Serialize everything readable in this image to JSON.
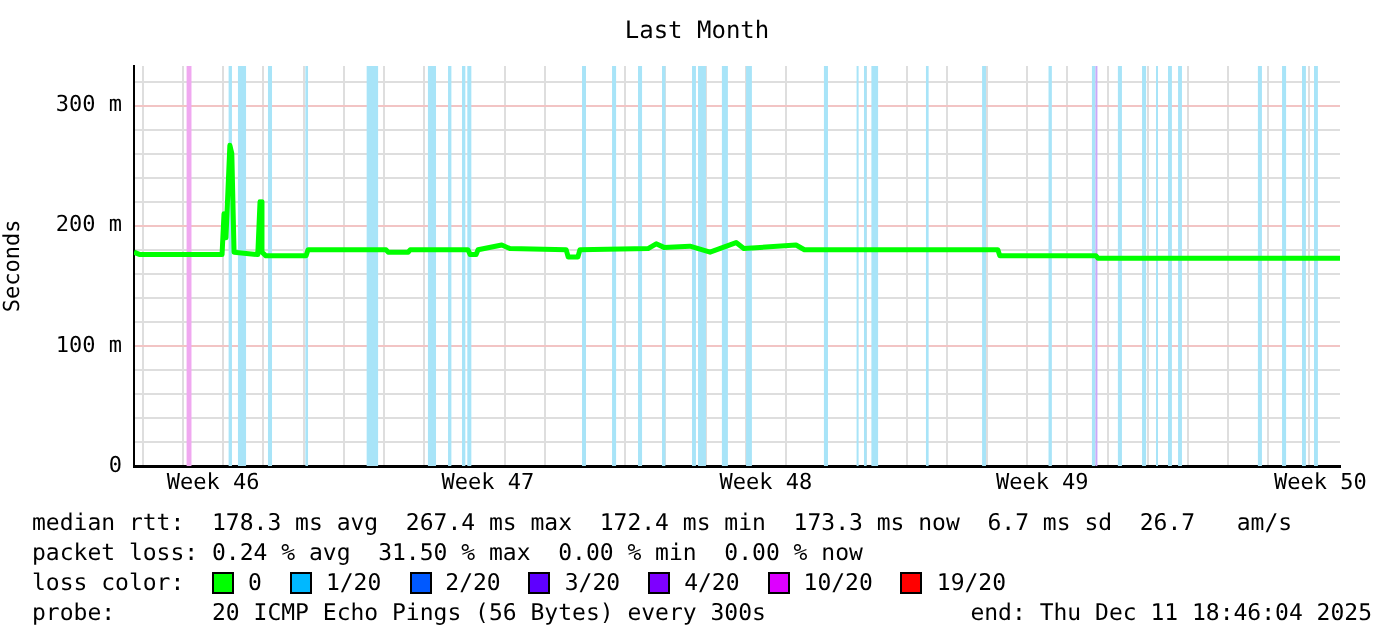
{
  "chart_data": {
    "type": "line",
    "title": "Last Month",
    "ylabel": "Seconds",
    "legend_title": "loss color:",
    "legend": "bottom",
    "grid": true,
    "xlim": [
      "2025-11-11T18:46",
      "2025-12-11T18:46"
    ],
    "xticks": [
      {
        "value": "2025-11-12T00:00",
        "label": null
      },
      {
        "value": "2025-11-13T00:00",
        "label": null
      },
      {
        "value": "2025-11-13T18:00",
        "label": "Week 46"
      },
      {
        "value": "2025-11-14T00:00",
        "label": null
      },
      {
        "value": "2025-11-15T00:00",
        "label": null
      },
      {
        "value": "2025-11-16T00:00",
        "label": null
      },
      {
        "value": "2025-11-17T00:00",
        "label": null
      },
      {
        "value": "2025-11-18T00:00",
        "label": null
      },
      {
        "value": "2025-11-19T00:00",
        "label": null
      },
      {
        "value": "2025-11-20T00:00",
        "label": null
      },
      {
        "value": "2025-11-20T14:00",
        "label": "Week 47"
      },
      {
        "value": "2025-11-21T00:00",
        "label": null
      },
      {
        "value": "2025-11-22T00:00",
        "label": null
      },
      {
        "value": "2025-11-23T00:00",
        "label": null
      },
      {
        "value": "2025-11-24T00:00",
        "label": null
      },
      {
        "value": "2025-11-25T00:00",
        "label": null
      },
      {
        "value": "2025-11-26T00:00",
        "label": null
      },
      {
        "value": "2025-11-27T00:00",
        "label": null
      },
      {
        "value": "2025-11-27T12:00",
        "label": "Week 48"
      },
      {
        "value": "2025-11-28T00:00",
        "label": null
      },
      {
        "value": "2025-11-29T00:00",
        "label": null
      },
      {
        "value": "2025-11-30T00:00",
        "label": null
      },
      {
        "value": "2025-12-01T00:00",
        "label": null
      },
      {
        "value": "2025-12-02T00:00",
        "label": null
      },
      {
        "value": "2025-12-03T00:00",
        "label": null
      },
      {
        "value": "2025-12-04T00:00",
        "label": null
      },
      {
        "value": "2025-12-04T09:00",
        "label": "Week 49"
      },
      {
        "value": "2025-12-05T00:00",
        "label": null
      },
      {
        "value": "2025-12-06T00:00",
        "label": null
      },
      {
        "value": "2025-12-07T00:00",
        "label": null
      },
      {
        "value": "2025-12-08T00:00",
        "label": null
      },
      {
        "value": "2025-12-09T00:00",
        "label": null
      },
      {
        "value": "2025-12-10T00:00",
        "label": null
      },
      {
        "value": "2025-12-11T00:00",
        "label": null
      },
      {
        "value": "2025-12-11T07:00",
        "label": "Week 50"
      }
    ],
    "ylim": [
      0,
      333
    ],
    "yticks": [
      0,
      {
        "value": 20,
        "label": null
      },
      {
        "value": 40,
        "label": null
      },
      {
        "value": 60,
        "label": null
      },
      {
        "value": 80,
        "label": null
      },
      {
        "value": 100,
        "label": "100 m"
      },
      {
        "value": 120,
        "label": null
      },
      {
        "value": 140,
        "label": null
      },
      {
        "value": 160,
        "label": null
      },
      {
        "value": 180,
        "label": null
      },
      {
        "value": 200,
        "label": "200 m"
      },
      {
        "value": 220,
        "label": null
      },
      {
        "value": 240,
        "label": null
      },
      {
        "value": 260,
        "label": null
      },
      {
        "value": 280,
        "label": null
      },
      {
        "value": 300,
        "label": "300 m"
      },
      {
        "value": 320,
        "label": null
      }
    ],
    "series": [
      {
        "name": "0",
        "color": "#00ff00",
        "x": [
          "2025-11-11T18:46",
          "2025-11-11T22:20",
          "2025-11-13T23:20",
          "2025-11-14T00:30",
          "2025-11-14T01:40",
          "2025-11-14T04:00",
          "2025-11-14T05:10",
          "2025-11-14T06:30",
          "2025-11-14T20:40",
          "2025-11-14T22:00",
          "2025-11-14T23:10",
          "2025-11-15T01:30",
          "2025-11-16T01:30",
          "2025-11-16T02:40",
          "2025-11-18T01:15",
          "2025-11-18T02:30",
          "2025-11-18T14:30",
          "2025-11-18T15:40",
          "2025-11-20T02:10",
          "2025-11-20T03:25",
          "2025-11-20T07:00",
          "2025-11-20T08:10",
          "2025-11-20T22:20",
          "2025-11-21T03:10",
          "2025-11-22T12:46",
          "2025-11-22T14:00",
          "2025-11-22T19:46",
          "2025-11-22T21:00",
          "2025-11-24T13:40",
          "2025-11-24T18:30",
          "2025-11-24T23:10",
          "2025-11-25T14:40",
          "2025-11-26T02:40",
          "2025-11-26T18:15",
          "2025-11-26T22:50",
          "2025-11-28T06:00",
          "2025-11-28T11:00",
          "2025-12-03T06:30",
          "2025-12-03T07:40",
          "2025-12-05T17:05",
          "2025-12-05T18:15",
          "2025-12-11T18:46"
        ],
        "values": [
          178,
          176,
          176,
          210,
          190,
          267,
          260,
          178,
          176,
          220,
          178,
          175,
          175,
          180,
          180,
          178,
          178,
          180,
          180,
          176,
          176,
          180,
          184,
          181,
          180,
          174,
          174,
          180,
          181,
          185,
          182,
          183,
          178,
          186,
          181,
          184,
          180,
          180,
          175,
          175,
          173,
          173
        ]
      },
      {
        "name": "1/20",
        "color": "#00b8ff"
      },
      {
        "name": "2/20",
        "color": "#0059ff"
      },
      {
        "name": "3/20",
        "color": "#5e00ff"
      },
      {
        "name": "4/20",
        "color": "#7e00ff"
      },
      {
        "name": "10/20",
        "color": "#dd00ff"
      },
      {
        "name": "19/20",
        "color": "#ff0000"
      }
    ],
    "bands": [
      {
        "axis": "x",
        "from": "2025-11-13T02:10",
        "to": "2025-11-13T05:05",
        "color": "#f0a8f0"
      },
      {
        "axis": "x",
        "from": "2025-11-14T03:15",
        "to": "2025-11-14T05:15",
        "color": "#a8e4f8"
      },
      {
        "axis": "x",
        "from": "2025-11-14T08:50",
        "to": "2025-11-14T13:40",
        "color": "#a8e4f8"
      },
      {
        "axis": "x",
        "from": "2025-11-15T02:45",
        "to": "2025-11-15T05:10",
        "color": "#a8e4f8"
      },
      {
        "axis": "x",
        "from": "2025-11-16T01:05",
        "to": "2025-11-16T02:40",
        "color": "#a8e4f8"
      },
      {
        "axis": "x",
        "from": "2025-11-17T13:40",
        "to": "2025-11-17T20:30",
        "color": "#a8e4f8"
      },
      {
        "axis": "x",
        "from": "2025-11-19T02:15",
        "to": "2025-11-19T07:05",
        "color": "#a8e4f8"
      },
      {
        "axis": "x",
        "from": "2025-11-19T14:15",
        "to": "2025-11-19T16:15",
        "color": "#a8e4f8"
      },
      {
        "axis": "x",
        "from": "2025-11-19T22:35",
        "to": "2025-11-20T00:35",
        "color": "#a8e4f8"
      },
      {
        "axis": "x",
        "from": "2025-11-20T01:45",
        "to": "2025-11-20T04:10",
        "color": "#a8e4f8"
      },
      {
        "axis": "x",
        "from": "2025-11-22T22:15",
        "to": "2025-11-23T00:35",
        "color": "#a8e4f8"
      },
      {
        "axis": "x",
        "from": "2025-11-23T16:10",
        "to": "2025-11-23T18:35",
        "color": "#a8e4f8"
      },
      {
        "axis": "x",
        "from": "2025-11-24T07:40",
        "to": "2025-11-24T10:05",
        "color": "#a8e4f8"
      },
      {
        "axis": "x",
        "from": "2025-11-24T22:00",
        "to": "2025-11-25T00:00",
        "color": "#a8e4f8"
      },
      {
        "axis": "x",
        "from": "2025-11-25T15:55",
        "to": "2025-11-25T18:15",
        "color": "#a8e4f8"
      },
      {
        "axis": "x",
        "from": "2025-11-25T19:30",
        "to": "2025-11-26T00:15",
        "color": "#a8e4f8"
      },
      {
        "axis": "x",
        "from": "2025-11-26T09:45",
        "to": "2025-11-26T13:20",
        "color": "#a8e4f8"
      },
      {
        "axis": "x",
        "from": "2025-11-27T00:10",
        "to": "2025-11-27T03:40",
        "color": "#a8e4f8"
      },
      {
        "axis": "x",
        "from": "2025-11-28T22:40",
        "to": "2025-11-29T01:05",
        "color": "#a8e4f8"
      },
      {
        "axis": "x",
        "from": "2025-11-29T18:10",
        "to": "2025-11-29T19:20",
        "color": "#a8e4f8"
      },
      {
        "axis": "x",
        "from": "2025-11-29T22:35",
        "to": "2025-11-30T00:10",
        "color": "#a8e4f8"
      },
      {
        "axis": "x",
        "from": "2025-11-30T03:00",
        "to": "2025-11-30T07:00",
        "color": "#a8e4f8"
      },
      {
        "axis": "x",
        "from": "2025-12-01T11:35",
        "to": "2025-12-01T13:10",
        "color": "#a8e4f8"
      },
      {
        "axis": "x",
        "from": "2025-12-02T21:05",
        "to": "2025-12-02T23:25",
        "color": "#a8e4f8"
      },
      {
        "axis": "x",
        "from": "2025-12-04T12:45",
        "to": "2025-12-04T14:45",
        "color": "#a8e4f8"
      },
      {
        "axis": "x",
        "from": "2025-12-05T14:40",
        "to": "2025-12-05T16:40",
        "color": "#a8e4f8"
      },
      {
        "axis": "x",
        "from": "2025-12-05T16:45",
        "to": "2025-12-05T17:55",
        "color": "#c8a8f8"
      },
      {
        "axis": "x",
        "from": "2025-12-06T06:10",
        "to": "2025-12-06T08:35",
        "color": "#a8e4f8"
      },
      {
        "axis": "x",
        "from": "2025-12-06T20:35",
        "to": "2025-12-06T23:00",
        "color": "#a8e4f8"
      },
      {
        "axis": "x",
        "from": "2025-12-07T04:55",
        "to": "2025-12-07T06:05",
        "color": "#a8e4f8"
      },
      {
        "axis": "x",
        "from": "2025-12-07T12:05",
        "to": "2025-12-07T14:25",
        "color": "#a8e4f8"
      },
      {
        "axis": "x",
        "from": "2025-12-07T18:05",
        "to": "2025-12-07T20:25",
        "color": "#a8e4f8"
      },
      {
        "axis": "x",
        "from": "2025-12-09T17:45",
        "to": "2025-12-09T20:10",
        "color": "#a8e4f8"
      },
      {
        "axis": "x",
        "from": "2025-12-10T08:10",
        "to": "2025-12-10T10:35",
        "color": "#a8e4f8"
      },
      {
        "axis": "x",
        "from": "2025-12-10T20:05",
        "to": "2025-12-10T22:25",
        "color": "#a8e4f8"
      },
      {
        "axis": "x",
        "from": "2025-12-11T03:15",
        "to": "2025-12-11T05:35",
        "color": "#a8e4f8"
      }
    ],
    "annotations": [
      "median rtt:  178.3 ms avg  267.4 ms max  172.4 ms min  173.3 ms now  6.7 ms sd  26.7   am/s",
      "packet loss: 0.24 % avg  31.50 % max  0.00 % min  0.00 % now",
      "probe:       20 ICMP Echo Pings (56 Bytes) every 300s",
      "end: Thu Dec 11 18:46:04 2025"
    ]
  }
}
